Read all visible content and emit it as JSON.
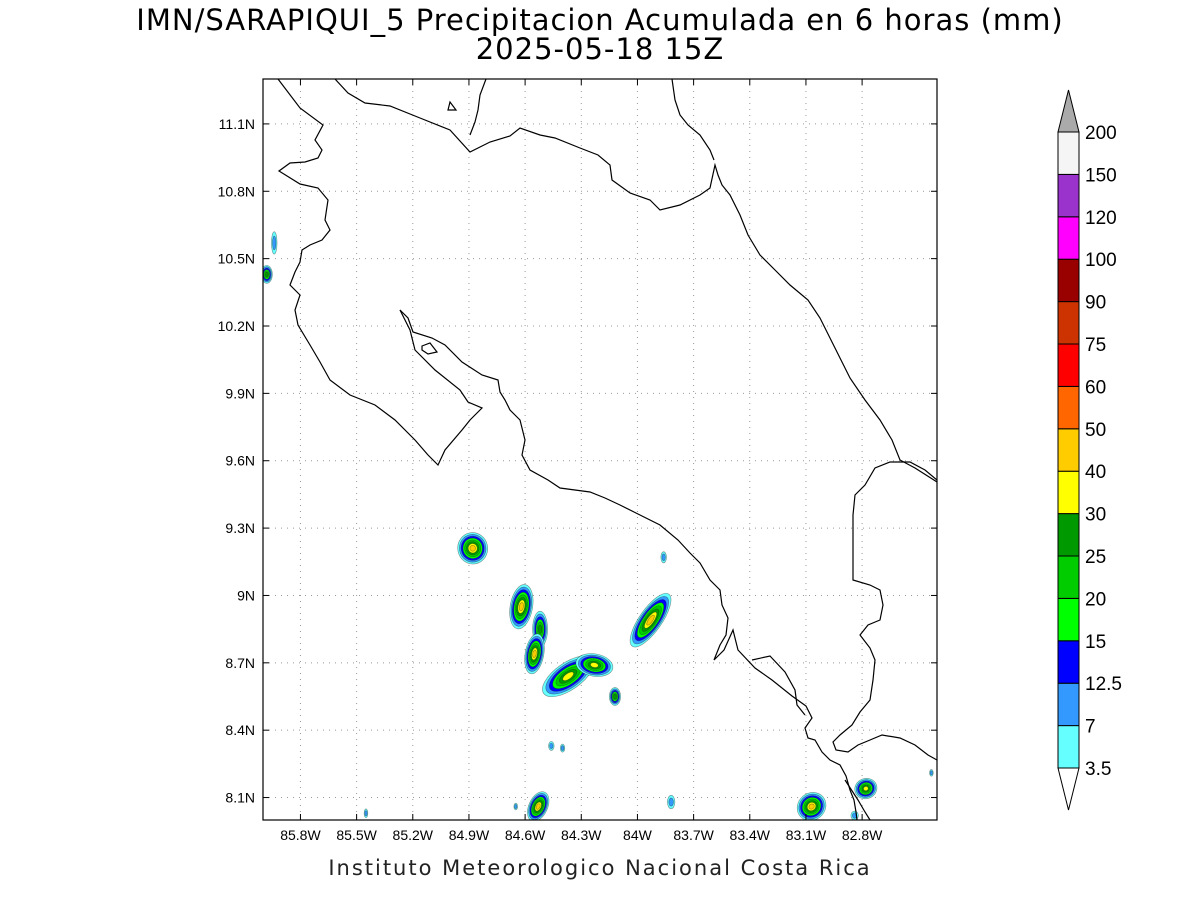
{
  "title": "IMN/SARAPIQUI_5 Precipitacion Acumulada en 6 horas (mm)",
  "subtitle": "2025-05-18 15Z",
  "footer": "Instituto Meteorologico Nacional Costa Rica",
  "map": {
    "lon_range": [
      -86.0,
      -82.4
    ],
    "lat_range": [
      8.0,
      11.3
    ],
    "lat_ticks": [
      {
        "value": 11.1,
        "label": "11.1N"
      },
      {
        "value": 10.8,
        "label": "10.8N"
      },
      {
        "value": 10.5,
        "label": "10.5N"
      },
      {
        "value": 10.2,
        "label": "10.2N"
      },
      {
        "value": 9.9,
        "label": "9.9N"
      },
      {
        "value": 9.6,
        "label": "9.6N"
      },
      {
        "value": 9.3,
        "label": "9.3N"
      },
      {
        "value": 9.0,
        "label": "9N"
      },
      {
        "value": 8.7,
        "label": "8.7N"
      },
      {
        "value": 8.4,
        "label": "8.4N"
      },
      {
        "value": 8.1,
        "label": "8.1N"
      }
    ],
    "lon_ticks": [
      {
        "value": -85.8,
        "label": "85.8W"
      },
      {
        "value": -85.5,
        "label": "85.5W"
      },
      {
        "value": -85.2,
        "label": "85.2W"
      },
      {
        "value": -84.9,
        "label": "84.9W"
      },
      {
        "value": -84.6,
        "label": "84.6W"
      },
      {
        "value": -84.3,
        "label": "84.3W"
      },
      {
        "value": -84.0,
        "label": "84W"
      },
      {
        "value": -83.7,
        "label": "83.7W"
      },
      {
        "value": -83.4,
        "label": "83.4W"
      },
      {
        "value": -83.1,
        "label": "83.1W"
      },
      {
        "value": -82.8,
        "label": "82.8W"
      }
    ],
    "grid": true
  },
  "colorbar": {
    "levels": [
      {
        "label": "3.5",
        "color": "#ffffff"
      },
      {
        "label": "7",
        "color": "#66ffff"
      },
      {
        "label": "12.5",
        "color": "#3399ff"
      },
      {
        "label": "15",
        "color": "#0000ff"
      },
      {
        "label": "20",
        "color": "#00ff00"
      },
      {
        "label": "25",
        "color": "#00cc00"
      },
      {
        "label": "30",
        "color": "#009900"
      },
      {
        "label": "40",
        "color": "#ffff00"
      },
      {
        "label": "50",
        "color": "#ffcc00"
      },
      {
        "label": "60",
        "color": "#ff6600"
      },
      {
        "label": "75",
        "color": "#ff0000"
      },
      {
        "label": "90",
        "color": "#cc3300"
      },
      {
        "label": "100",
        "color": "#990000"
      },
      {
        "label": "120",
        "color": "#ff00ff"
      },
      {
        "label": "150",
        "color": "#9933cc"
      },
      {
        "label": "200",
        "color": "#f5f5f5"
      }
    ],
    "over_color": "#aaaaaa",
    "under_color": "#ffffff"
  },
  "precip_cells": [
    {
      "lon": -84.88,
      "lat": 9.21,
      "rx": 0.08,
      "ry": 0.07,
      "angle": -10,
      "peak": 40
    },
    {
      "lon": -84.62,
      "lat": 8.95,
      "rx": 0.06,
      "ry": 0.1,
      "angle": 10,
      "peak": 40
    },
    {
      "lon": -84.52,
      "lat": 8.85,
      "rx": 0.04,
      "ry": 0.08,
      "angle": 0,
      "peak": 25
    },
    {
      "lon": -84.55,
      "lat": 8.74,
      "rx": 0.05,
      "ry": 0.09,
      "angle": 10,
      "peak": 40
    },
    {
      "lon": -84.37,
      "lat": 8.64,
      "rx": 0.16,
      "ry": 0.06,
      "angle": -35,
      "peak": 30
    },
    {
      "lon": -84.23,
      "lat": 8.69,
      "rx": 0.1,
      "ry": 0.05,
      "angle": 10,
      "peak": 30
    },
    {
      "lon": -84.12,
      "lat": 8.55,
      "rx": 0.03,
      "ry": 0.04,
      "angle": 0,
      "peak": 25
    },
    {
      "lon": -83.93,
      "lat": 8.89,
      "rx": 0.17,
      "ry": 0.05,
      "angle": -55,
      "peak": 40
    },
    {
      "lon": -83.86,
      "lat": 9.17,
      "rx": 0.015,
      "ry": 0.025,
      "angle": 0,
      "peak": 7
    },
    {
      "lon": -85.98,
      "lat": 10.43,
      "rx": 0.03,
      "ry": 0.04,
      "angle": 0,
      "peak": 25
    },
    {
      "lon": -85.94,
      "lat": 10.57,
      "rx": 0.015,
      "ry": 0.05,
      "angle": 0,
      "peak": 7
    },
    {
      "lon": -84.53,
      "lat": 8.06,
      "rx": 0.05,
      "ry": 0.07,
      "angle": 25,
      "peak": 40
    },
    {
      "lon": -83.07,
      "lat": 8.06,
      "rx": 0.08,
      "ry": 0.06,
      "angle": -40,
      "peak": 40
    },
    {
      "lon": -82.78,
      "lat": 8.14,
      "rx": 0.06,
      "ry": 0.045,
      "angle": -20,
      "peak": 30
    },
    {
      "lon": -83.82,
      "lat": 8.08,
      "rx": 0.02,
      "ry": 0.03,
      "angle": 0,
      "peak": 7
    },
    {
      "lon": -84.46,
      "lat": 8.33,
      "rx": 0.015,
      "ry": 0.02,
      "angle": 0,
      "peak": 7
    },
    {
      "lon": -84.4,
      "lat": 8.32,
      "rx": 0.012,
      "ry": 0.018,
      "angle": 0,
      "peak": 7
    },
    {
      "lon": -84.65,
      "lat": 8.06,
      "rx": 0.01,
      "ry": 0.015,
      "angle": 0,
      "peak": 7
    },
    {
      "lon": -82.43,
      "lat": 8.21,
      "rx": 0.01,
      "ry": 0.015,
      "angle": 0,
      "peak": 7
    },
    {
      "lon": -82.84,
      "lat": 8.02,
      "rx": 0.02,
      "ry": 0.02,
      "angle": 0,
      "peak": 7
    },
    {
      "lon": -85.45,
      "lat": 8.03,
      "rx": 0.01,
      "ry": 0.02,
      "angle": 0,
      "peak": 7
    }
  ]
}
